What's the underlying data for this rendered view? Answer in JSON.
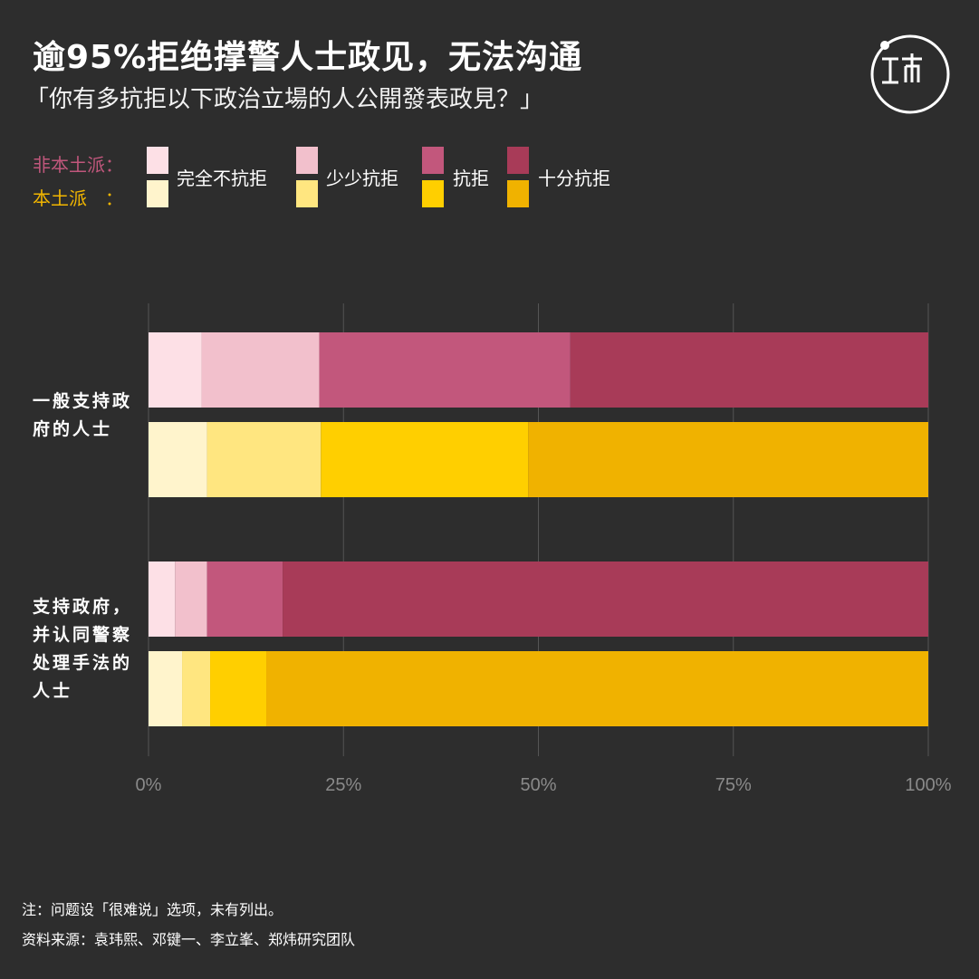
{
  "header": {
    "title": "逾95%拒绝撑警人士政见，无法沟通",
    "subtitle": "「你有多抗拒以下政治立場的人公開發表政見？」"
  },
  "legend": {
    "group_nonlocal": "非本土派：",
    "group_local": "本土派　：",
    "items": [
      "完全不抗拒",
      "少少抗拒",
      "抗拒",
      "十分抗拒"
    ]
  },
  "colors": {
    "nonlocal": [
      "#fde0e6",
      "#f2c0cc",
      "#c2577c",
      "#a83b58"
    ],
    "local": [
      "#fff4cc",
      "#ffe680",
      "#ffcf00",
      "#f0b200"
    ],
    "background": "#2d2d2d",
    "gridline": "#555555",
    "tick": "#8a8a8a"
  },
  "chart_data": {
    "type": "bar",
    "orientation": "horizontal",
    "stacked": true,
    "categories": [
      "一般支持政府的人士",
      "支持政府，并认同警察处理手法的人士"
    ],
    "category_label_lines": [
      [
        "一般支持政",
        "府的人士"
      ],
      [
        "支持政府，",
        "并认同警察",
        "处理手法的",
        "人士"
      ]
    ],
    "segments": [
      "完全不抗拒",
      "少少抗拒",
      "抗拒",
      "十分抗拒"
    ],
    "bars": [
      {
        "category": 0,
        "group": "非本土派",
        "values": [
          6.8,
          15.1,
          32.2,
          45.9
        ]
      },
      {
        "category": 0,
        "group": "本土派",
        "values": [
          7.5,
          14.6,
          26.6,
          51.3
        ]
      },
      {
        "category": 1,
        "group": "非本土派",
        "values": [
          3.4,
          4.1,
          9.7,
          82.8
        ]
      },
      {
        "category": 1,
        "group": "本土派",
        "values": [
          4.3,
          3.6,
          7.2,
          84.9
        ]
      }
    ],
    "xlim": [
      0,
      100
    ],
    "xticks": [
      "0%",
      "25%",
      "50%",
      "75%",
      "100%"
    ],
    "grid": true,
    "legend_position": "top-left"
  },
  "footer": {
    "note": "注：问题设「很难说」选项，未有列出。",
    "source": "资料来源：袁玮熙、邓键一、李立峯、郑炜研究团队"
  },
  "logo": {
    "icon": "initium-logo-icon"
  }
}
